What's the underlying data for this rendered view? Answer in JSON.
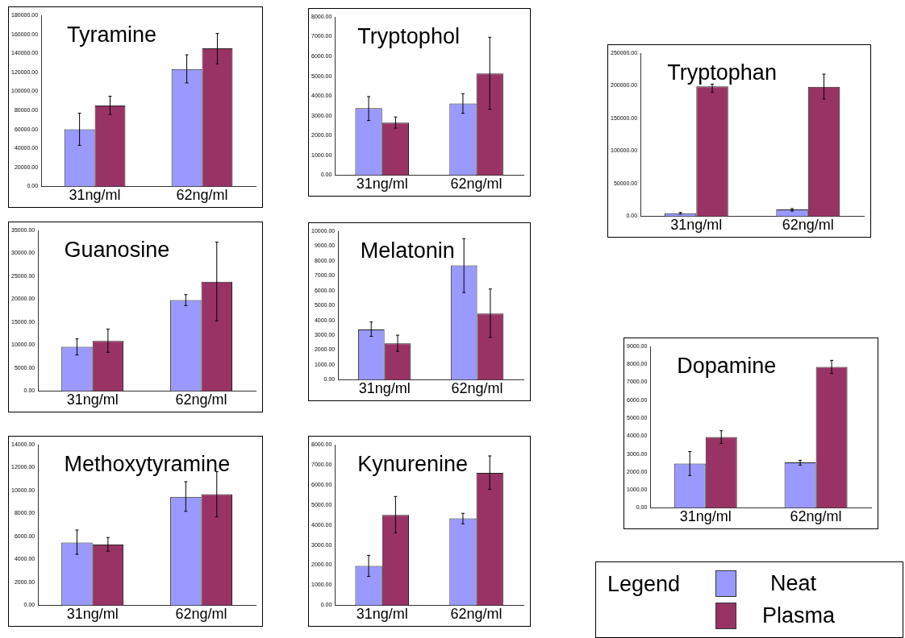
{
  "chart_data": [
    {
      "type": "bar",
      "title": "Tyramine",
      "categories": [
        "31ng/ml",
        "62ng/ml"
      ],
      "ylim": [
        0,
        180000
      ],
      "yticks": [
        {
          "value": 0,
          "label": "0.00"
        },
        {
          "value": 20000,
          "label": "20000.00"
        },
        {
          "value": 40000,
          "label": "40000.00"
        },
        {
          "value": 60000,
          "label": "60000.00"
        },
        {
          "value": 80000,
          "label": "80000.00"
        },
        {
          "value": 100000,
          "label": "100000.00"
        },
        {
          "value": 120000,
          "label": "120000.00"
        },
        {
          "value": 140000,
          "label": "140000.00"
        },
        {
          "value": 160000,
          "label": "160000.00"
        },
        {
          "value": 180000,
          "label": "180000.00"
        }
      ],
      "series": [
        {
          "color": "#9999ff",
          "values": [
            60000,
            123500
          ],
          "errors": [
            [
              43300,
              77100
            ],
            [
              108900,
              138400
            ]
          ]
        },
        {
          "color": "#993366",
          "values": [
            85100,
            145300
          ],
          "errors": [
            [
              75700,
              94900
            ],
            [
              129000,
              160800
            ]
          ]
        }
      ]
    },
    {
      "type": "bar",
      "title": "Tryptophol",
      "categories": [
        "31ng/ml",
        "62ng/ml"
      ],
      "ylim": [
        0,
        8000
      ],
      "yticks": [
        {
          "value": 0,
          "label": "0.00"
        },
        {
          "value": 1000,
          "label": "1000.00"
        },
        {
          "value": 2000,
          "label": "2000.00"
        },
        {
          "value": 3000,
          "label": "3000.00"
        },
        {
          "value": 4000,
          "label": "4000.00"
        },
        {
          "value": 5000,
          "label": "5000.00"
        },
        {
          "value": 6000,
          "label": "6000.00"
        },
        {
          "value": 7000,
          "label": "7000.00"
        },
        {
          "value": 8000,
          "label": "8000.00"
        }
      ],
      "series": [
        {
          "color": "#9999ff",
          "values": [
            3390,
            3620
          ],
          "errors": [
            [
              2760,
              3970
            ],
            [
              3130,
              4120
            ]
          ]
        },
        {
          "color": "#993366",
          "values": [
            2650,
            5140
          ],
          "errors": [
            [
              2380,
              2940
            ],
            [
              3330,
              6970
            ]
          ]
        }
      ]
    },
    {
      "type": "bar",
      "title": "Tryptophan",
      "categories": [
        "31ng/ml",
        "62ng/ml"
      ],
      "ylim": [
        0,
        250000
      ],
      "yticks": [
        {
          "value": 0,
          "label": "0.00"
        },
        {
          "value": 50000,
          "label": "50000.00"
        },
        {
          "value": 100000,
          "label": "100000.00"
        },
        {
          "value": 150000,
          "label": "150000.00"
        },
        {
          "value": 200000,
          "label": "200000.00"
        },
        {
          "value": 250000,
          "label": "250000.00"
        }
      ],
      "series": [
        {
          "color": "#9999ff",
          "values": [
            4500,
            10300
          ],
          "errors": [
            [
              3300,
              5800
            ],
            [
              7900,
              11600
            ]
          ]
        },
        {
          "color": "#993366",
          "values": [
            199200,
            198300
          ],
          "errors": [
            [
              190100,
              202500
            ],
            [
              179800,
              217800
            ]
          ]
        }
      ]
    },
    {
      "type": "bar",
      "title": "Guanosine",
      "categories": [
        "31ng/ml",
        "62ng/ml"
      ],
      "ylim": [
        0,
        35000
      ],
      "yticks": [
        {
          "value": 0,
          "label": "0.00"
        },
        {
          "value": 5000,
          "label": "5000.00"
        },
        {
          "value": 10000,
          "label": "10000.00"
        },
        {
          "value": 15000,
          "label": "15000.00"
        },
        {
          "value": 20000,
          "label": "20000.00"
        },
        {
          "value": 25000,
          "label": "25000.00"
        },
        {
          "value": 30000,
          "label": "30000.00"
        },
        {
          "value": 35000,
          "label": "35000.00"
        }
      ],
      "series": [
        {
          "color": "#9999ff",
          "values": [
            9650,
            19810
          ],
          "errors": [
            [
              7860,
              11360
            ],
            [
              18620,
              21010
            ]
          ]
        },
        {
          "color": "#993366",
          "values": [
            10930,
            23830
          ],
          "errors": [
            [
              8450,
              13490
            ],
            [
              15290,
              32450
            ]
          ]
        }
      ]
    },
    {
      "type": "bar",
      "title": "Melatonin",
      "categories": [
        "31ng/ml",
        "62ng/ml"
      ],
      "ylim": [
        0,
        10000
      ],
      "yticks": [
        {
          "value": 0,
          "label": "0.00"
        },
        {
          "value": 1000,
          "label": "1000.00"
        },
        {
          "value": 2000,
          "label": "2000.00"
        },
        {
          "value": 3000,
          "label": "3000.00"
        },
        {
          "value": 4000,
          "label": "4000.00"
        },
        {
          "value": 5000,
          "label": "5000.00"
        },
        {
          "value": 6000,
          "label": "6000.00"
        },
        {
          "value": 7000,
          "label": "7000.00"
        },
        {
          "value": 8000,
          "label": "8000.00"
        },
        {
          "value": 9000,
          "label": "9000.00"
        },
        {
          "value": 10000,
          "label": "10000.00"
        }
      ],
      "series": [
        {
          "color": "#9999ff",
          "values": [
            3390,
            7700
          ],
          "errors": [
            [
              2920,
              3890
            ],
            [
              5870,
              9500
            ]
          ]
        },
        {
          "color": "#993366",
          "values": [
            2450,
            4460
          ],
          "errors": [
            [
              1910,
              3000
            ],
            [
              2850,
              6110
            ]
          ]
        }
      ]
    },
    {
      "type": "bar",
      "title": "Dopamine",
      "categories": [
        "31ng/ml",
        "62ng/ml"
      ],
      "ylim": [
        0,
        9000
      ],
      "yticks": [
        {
          "value": 0,
          "label": "0.00"
        },
        {
          "value": 1000,
          "label": "1000.00"
        },
        {
          "value": 2000,
          "label": "2000.00"
        },
        {
          "value": 3000,
          "label": "3000.00"
        },
        {
          "value": 4000,
          "label": "4000.00"
        },
        {
          "value": 5000,
          "label": "5000.00"
        },
        {
          "value": 6000,
          "label": "6000.00"
        },
        {
          "value": 7000,
          "label": "7000.00"
        },
        {
          "value": 8000,
          "label": "8000.00"
        },
        {
          "value": 9000,
          "label": "9000.00"
        }
      ],
      "series": [
        {
          "color": "#9999ff",
          "values": [
            2460,
            2530
          ],
          "errors": [
            [
              1800,
              3140
            ],
            [
              2380,
              2650
            ]
          ]
        },
        {
          "color": "#993366",
          "values": [
            3950,
            7860
          ],
          "errors": [
            [
              3590,
              4300
            ],
            [
              7490,
              8220
            ]
          ]
        }
      ]
    },
    {
      "type": "bar",
      "title": "Methoxytyramine",
      "categories": [
        "31ng/ml",
        "62ng/ml"
      ],
      "ylim": [
        0,
        14000
      ],
      "yticks": [
        {
          "value": 0,
          "label": "0.00"
        },
        {
          "value": 2000,
          "label": "2000.00"
        },
        {
          "value": 4000,
          "label": "4000.00"
        },
        {
          "value": 6000,
          "label": "6000.00"
        },
        {
          "value": 8000,
          "label": "8000.00"
        },
        {
          "value": 10000,
          "label": "10000.00"
        },
        {
          "value": 12000,
          "label": "12000.00"
        },
        {
          "value": 14000,
          "label": "14000.00"
        }
      ],
      "series": [
        {
          "color": "#9999ff",
          "values": [
            5470,
            9450
          ],
          "errors": [
            [
              4450,
              6560
            ],
            [
              8190,
              10770
            ]
          ]
        },
        {
          "color": "#993366",
          "values": [
            5300,
            9680
          ],
          "errors": [
            [
              4720,
              5910
            ],
            [
              7710,
              11650
            ]
          ]
        }
      ]
    },
    {
      "type": "bar",
      "title": "Kynurenine",
      "categories": [
        "31ng/ml",
        "62ng/ml"
      ],
      "ylim": [
        0,
        8000
      ],
      "yticks": [
        {
          "value": 0,
          "label": "0.00"
        },
        {
          "value": 1000,
          "label": "1000.00"
        },
        {
          "value": 2000,
          "label": "2000.00"
        },
        {
          "value": 3000,
          "label": "3000.00"
        },
        {
          "value": 4000,
          "label": "4000.00"
        },
        {
          "value": 5000,
          "label": "5000.00"
        },
        {
          "value": 6000,
          "label": "6000.00"
        },
        {
          "value": 7000,
          "label": "7000.00"
        },
        {
          "value": 8000,
          "label": "8000.00"
        }
      ],
      "series": [
        {
          "color": "#9999ff",
          "values": [
            1960,
            4330
          ],
          "errors": [
            [
              1440,
              2490
            ],
            [
              4060,
              4580
            ]
          ]
        },
        {
          "color": "#993366",
          "values": [
            4500,
            6600
          ],
          "errors": [
            [
              3610,
              5420
            ],
            [
              5770,
              7440
            ]
          ]
        }
      ]
    },
    {
      "type": "other",
      "legend_title": "Legend",
      "series": [
        {
          "name": "Neat",
          "color": "#9999ff"
        },
        {
          "name": "Plasma",
          "color": "#993366"
        }
      ]
    }
  ]
}
